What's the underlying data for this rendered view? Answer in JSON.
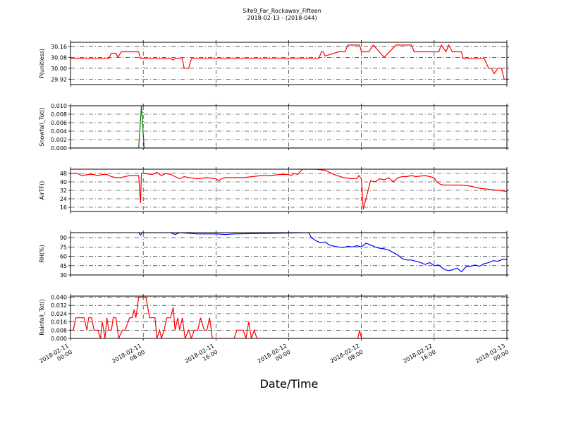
{
  "chart_data": {
    "title": "Site9_Far_Rockaway_Fifteen",
    "subtitle": "2018-02-13 - (2018-044)",
    "xlabel": "Date/Time",
    "x_ticks": [
      "2018-02-11 00:00",
      "2018-02-11 08:00",
      "2018-02-11 16:00",
      "2018-02-12 00:00",
      "2018-02-12 08:00",
      "2018-02-12 16:00",
      "2018-02-13 00:00"
    ],
    "x_tick_lines": [
      [
        "2018-02-11",
        "00:00"
      ],
      [
        "2018-02-11",
        "08:00"
      ],
      [
        "2018-02-11",
        "16:00"
      ],
      [
        "2018-02-12",
        "00:00"
      ],
      [
        "2018-02-12",
        "08:00"
      ],
      [
        "2018-02-12",
        "16:00"
      ],
      [
        "2018-02-13",
        "00:00"
      ]
    ],
    "x_range_hours": [
      0,
      48
    ],
    "grid": true,
    "panels": [
      {
        "type": "line",
        "ylabel": "P(unitless)",
        "color": "#ff0000",
        "ylim": [
          29.88,
          30.19
        ],
        "yticks": [
          29.92,
          30.0,
          30.08,
          30.16
        ],
        "ytick_labels": [
          "29.92",
          "30.00",
          "30.08",
          "30.16"
        ],
        "x": [
          0,
          4.2,
          4.5,
          5.0,
          5.2,
          5.6,
          7.5,
          7.7,
          11.0,
          11.3,
          11.5,
          12.3,
          12.5,
          13.0,
          13.3,
          27.3,
          27.6,
          27.8,
          28.0,
          29.5,
          29.7,
          30.2,
          30.5,
          31.8,
          32.0,
          32.8,
          33.3,
          34.5,
          35.8,
          36.0,
          36.8,
          37.5,
          37.8,
          40.5,
          40.8,
          41.3,
          41.6,
          42.0,
          43.0,
          43.2,
          44.2,
          44.5,
          45.5,
          46.0,
          46.3,
          46.6,
          47.0,
          47.4,
          47.7,
          48.0
        ],
        "y": [
          30.07,
          30.07,
          30.11,
          30.11,
          30.08,
          30.12,
          30.12,
          30.07,
          30.07,
          30.06,
          30.07,
          30.07,
          30.0,
          30.0,
          30.07,
          30.07,
          30.12,
          30.12,
          30.09,
          30.12,
          30.12,
          30.12,
          30.17,
          30.17,
          30.12,
          30.12,
          30.17,
          30.08,
          30.17,
          30.17,
          30.17,
          30.17,
          30.12,
          30.12,
          30.17,
          30.12,
          30.17,
          30.12,
          30.12,
          30.07,
          30.07,
          30.07,
          30.07,
          30.0,
          30.0,
          29.96,
          30.0,
          30.0,
          29.92,
          29.92
        ]
      },
      {
        "type": "line",
        "ylabel": "Snowfall_Tot()",
        "color": "#007700",
        "ylim": [
          0.0,
          0.01
        ],
        "yticks": [
          0.0,
          0.002,
          0.004,
          0.006,
          0.008,
          0.01
        ],
        "ytick_labels": [
          "0.000",
          "0.002",
          "0.004",
          "0.006",
          "0.008",
          "0.010"
        ],
        "x": [
          0,
          7.5,
          7.8,
          8.1,
          48
        ],
        "y": [
          0.0,
          0.0,
          0.01,
          0.0,
          0.0
        ]
      },
      {
        "type": "line",
        "ylabel": "AirTF()",
        "color": "#ff0000",
        "ylim": [
          12,
          52
        ],
        "yticks": [
          16,
          24,
          32,
          40,
          48
        ],
        "ytick_labels": [
          "16",
          "24",
          "32",
          "40",
          "48"
        ],
        "x": [
          0,
          0.8,
          1.2,
          2.0,
          2.5,
          3.0,
          3.5,
          4.0,
          4.5,
          5.0,
          5.5,
          6.0,
          6.5,
          7.0,
          7.5,
          7.7,
          7.8,
          8.0,
          9.0,
          9.5,
          10.0,
          10.5,
          11.0,
          11.5,
          12.0,
          12.5,
          13.0,
          14.0,
          15.0,
          16.0,
          16.3,
          16.6,
          17.0,
          18.0,
          19.0,
          20.0,
          21.0,
          22.0,
          23.0,
          24.0,
          24.3,
          24.6,
          25.0,
          25.5,
          26.0,
          27.0,
          28.0,
          29.0,
          30.0,
          31.0,
          31.5,
          31.7,
          32.0,
          32.2,
          33.0,
          33.5,
          34.0,
          34.5,
          35.0,
          35.5,
          36.0,
          36.5,
          37.0,
          37.5,
          38.0,
          39.0,
          39.5,
          40.0,
          40.3,
          40.6,
          41.0,
          42.0,
          43.0,
          44.0,
          45.0,
          46.0,
          47.0,
          48.0
        ],
        "y": [
          48,
          48,
          46,
          47,
          47,
          46,
          47,
          47,
          45,
          44,
          44,
          45,
          46,
          46,
          46,
          20,
          48,
          48,
          47,
          49,
          46,
          48,
          47,
          45,
          43,
          45,
          44,
          43,
          44,
          43,
          41,
          43,
          44,
          44,
          44,
          45,
          46,
          46,
          47,
          47,
          46,
          48,
          47,
          52,
          52,
          52,
          51,
          47,
          44,
          43,
          43,
          46,
          43,
          14,
          41,
          40,
          43,
          42,
          44,
          40,
          44,
          45,
          45,
          46,
          45,
          46,
          45,
          44,
          40,
          38,
          37,
          37,
          37,
          36,
          34,
          33,
          32,
          31
        ]
      },
      {
        "type": "line",
        "ylabel": "RH(%)",
        "color": "#0000ff",
        "ylim": [
          30,
          98
        ],
        "yticks": [
          30,
          45,
          60,
          75,
          90
        ],
        "ytick_labels": [
          "30",
          "45",
          "60",
          "75",
          "90"
        ],
        "x": [
          7.5,
          7.7,
          7.9,
          9.5,
          11.0,
          11.5,
          12.0,
          14.0,
          16.0,
          17.0,
          18.0,
          26.2,
          26.5,
          27.0,
          27.5,
          28.0,
          28.5,
          29.0,
          29.5,
          30.0,
          30.5,
          31.0,
          31.5,
          32.0,
          32.5,
          33.0,
          33.5,
          34.0,
          34.5,
          35.0,
          35.5,
          36.0,
          36.5,
          37.0,
          37.5,
          38.0,
          38.5,
          39.0,
          39.5,
          40.0,
          40.5,
          41.0,
          41.5,
          42.0,
          42.5,
          43.0,
          43.5,
          44.0,
          44.5,
          45.0,
          45.5,
          46.0,
          46.5,
          47.0,
          47.5,
          48.0
        ],
        "y": [
          98,
          94,
          98,
          98,
          98,
          95,
          98,
          96,
          96,
          95,
          96,
          98,
          90,
          85,
          82,
          83,
          78,
          76,
          75,
          74,
          76,
          75,
          77,
          75,
          81,
          78,
          75,
          73,
          72,
          70,
          66,
          62,
          56,
          54,
          54,
          52,
          50,
          47,
          50,
          45,
          46,
          40,
          37,
          38,
          41,
          35,
          43,
          44,
          46,
          44,
          48,
          50,
          53,
          52,
          55,
          55
        ]
      },
      {
        "type": "line",
        "ylabel": "Rainfall_Tot()",
        "color": "#ff0000",
        "ylim": [
          0.0,
          0.041
        ],
        "yticks": [
          0.0,
          0.008,
          0.016,
          0.024,
          0.032,
          0.04
        ],
        "ytick_labels": [
          "0.000",
          "0.008",
          "0.016",
          "0.024",
          "0.032",
          "0.040"
        ],
        "x": [
          0,
          0.3,
          0.6,
          1.0,
          1.5,
          1.8,
          2.0,
          2.3,
          2.6,
          3.0,
          3.3,
          3.5,
          3.8,
          4.0,
          4.2,
          4.5,
          4.7,
          5.0,
          5.3,
          5.7,
          6.0,
          6.5,
          6.8,
          7.0,
          7.2,
          7.5,
          8.3,
          8.7,
          9.3,
          9.5,
          9.8,
          10.0,
          10.3,
          10.6,
          11.0,
          11.3,
          11.5,
          11.8,
          12.0,
          12.3,
          12.6,
          13.0,
          13.3,
          13.6,
          14.0,
          14.3,
          14.7,
          15.0,
          15.3,
          15.6,
          16.0,
          16.2,
          18.0,
          18.3,
          19.0,
          19.3,
          19.6,
          19.9,
          20.2,
          20.5,
          21.0,
          31.6,
          31.8,
          32.0,
          48.0
        ],
        "y": [
          0.008,
          0.008,
          0.02,
          0.02,
          0.02,
          0.008,
          0.02,
          0.02,
          0.008,
          0.008,
          0.0,
          0.016,
          0.0,
          0.02,
          0.008,
          0.008,
          0.02,
          0.02,
          0.0,
          0.008,
          0.008,
          0.02,
          0.02,
          0.028,
          0.02,
          0.04,
          0.04,
          0.02,
          0.02,
          0.0,
          0.008,
          0.0,
          0.008,
          0.02,
          0.02,
          0.03,
          0.008,
          0.02,
          0.008,
          0.02,
          0.0,
          0.008,
          0.0,
          0.008,
          0.008,
          0.02,
          0.008,
          0.008,
          0.02,
          0.0,
          0.0,
          0.0,
          0.0,
          0.008,
          0.008,
          0.0,
          0.016,
          0.0,
          0.008,
          0.0,
          0.0,
          0.0,
          0.008,
          0.0,
          0.0
        ]
      }
    ]
  }
}
